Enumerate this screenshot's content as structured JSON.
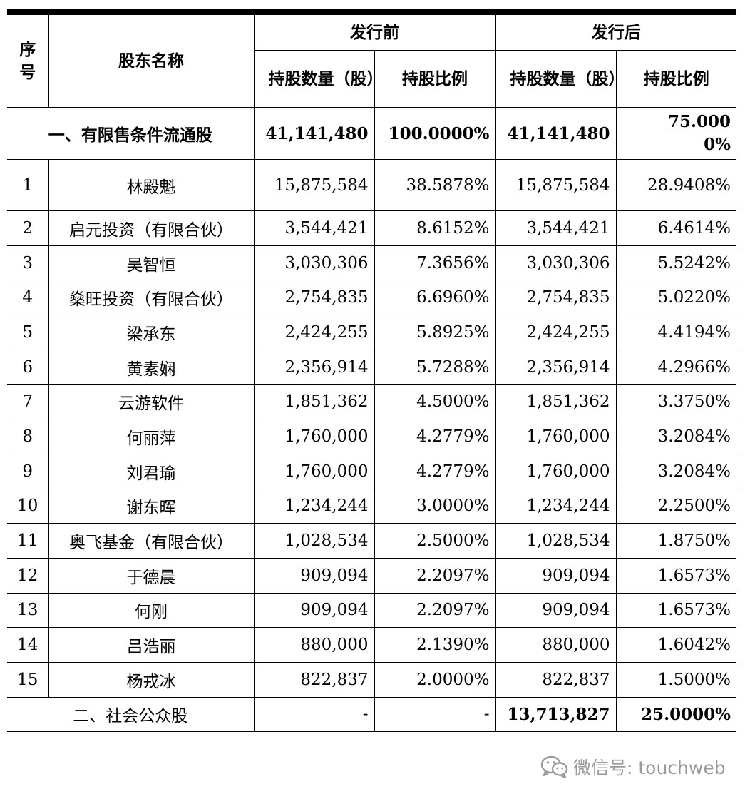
{
  "headers": {
    "seq": "序号",
    "name": "股东名称",
    "before": "发行前",
    "after": "发行后",
    "shares": "持股数量（股）",
    "ratio": "持股比例"
  },
  "section1": {
    "label": "一、有限售条件流通股",
    "before_shares": "41,141,480",
    "before_ratio": "100.0000%",
    "after_shares": "41,141,480",
    "after_ratio": "75.0000%"
  },
  "rows": [
    {
      "seq": "1",
      "name": "林殿魁",
      "before_shares": "15,875,584",
      "before_ratio": "38.5878%",
      "after_shares": "15,875,584",
      "after_ratio": "28.9408%"
    },
    {
      "seq": "2",
      "name": "启元投资（有限合伙）",
      "before_shares": "3,544,421",
      "before_ratio": "8.6152%",
      "after_shares": "3,544,421",
      "after_ratio": "6.4614%"
    },
    {
      "seq": "3",
      "name": "吴智恒",
      "before_shares": "3,030,306",
      "before_ratio": "7.3656%",
      "after_shares": "3,030,306",
      "after_ratio": "5.5242%"
    },
    {
      "seq": "4",
      "name": "燊旺投资（有限合伙）",
      "before_shares": "2,754,835",
      "before_ratio": "6.6960%",
      "after_shares": "2,754,835",
      "after_ratio": "5.0220%"
    },
    {
      "seq": "5",
      "name": "梁承东",
      "before_shares": "2,424,255",
      "before_ratio": "5.8925%",
      "after_shares": "2,424,255",
      "after_ratio": "4.4194%"
    },
    {
      "seq": "6",
      "name": "黄素娴",
      "before_shares": "2,356,914",
      "before_ratio": "5.7288%",
      "after_shares": "2,356,914",
      "after_ratio": "4.2966%"
    },
    {
      "seq": "7",
      "name": "云游软件",
      "before_shares": "1,851,362",
      "before_ratio": "4.5000%",
      "after_shares": "1,851,362",
      "after_ratio": "3.3750%"
    },
    {
      "seq": "8",
      "name": "何丽萍",
      "before_shares": "1,760,000",
      "before_ratio": "4.2779%",
      "after_shares": "1,760,000",
      "after_ratio": "3.2084%"
    },
    {
      "seq": "9",
      "name": "刘君瑜",
      "before_shares": "1,760,000",
      "before_ratio": "4.2779%",
      "after_shares": "1,760,000",
      "after_ratio": "3.2084%"
    },
    {
      "seq": "10",
      "name": "谢东晖",
      "before_shares": "1,234,244",
      "before_ratio": "3.0000%",
      "after_shares": "1,234,244",
      "after_ratio": "2.2500%"
    },
    {
      "seq": "11",
      "name": "奥飞基金（有限合伙）",
      "before_shares": "1,028,534",
      "before_ratio": "2.5000%",
      "after_shares": "1,028,534",
      "after_ratio": "1.8750%"
    },
    {
      "seq": "12",
      "name": "于德晨",
      "before_shares": "909,094",
      "before_ratio": "2.2097%",
      "after_shares": "909,094",
      "after_ratio": "1.6573%"
    },
    {
      "seq": "13",
      "name": "何刚",
      "before_shares": "909,094",
      "before_ratio": "2.2097%",
      "after_shares": "909,094",
      "after_ratio": "1.6573%"
    },
    {
      "seq": "14",
      "name": "吕浩丽",
      "before_shares": "880,000",
      "before_ratio": "2.1390%",
      "after_shares": "880,000",
      "after_ratio": "1.6042%"
    },
    {
      "seq": "15",
      "name": "杨戎冰",
      "before_shares": "822,837",
      "before_ratio": "2.0000%",
      "after_shares": "822,837",
      "after_ratio": "1.5000%"
    }
  ],
  "section2": {
    "label": "二、社会公众股",
    "before_shares": "-",
    "before_ratio": "-",
    "after_shares": "13,713,827",
    "after_ratio": "25.0000%"
  },
  "watermark": {
    "text": "微信号: touchweb",
    "icon": "wechat-icon"
  }
}
